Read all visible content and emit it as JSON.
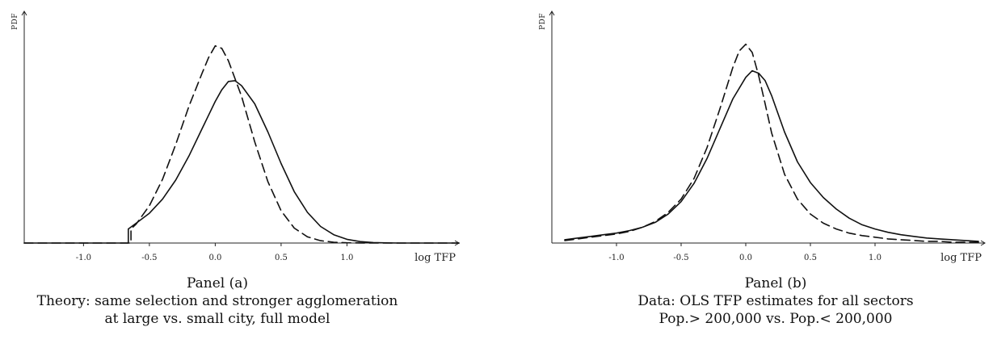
{
  "chart_data": [
    {
      "type": "line",
      "title": "Panel (a)",
      "subtitle": [
        "Theory: same selection and stronger agglomeration",
        "at large vs. small city, full model"
      ],
      "xlabel": "log TFP",
      "ylabel": "PDF",
      "xlim": [
        -1.45,
        1.85
      ],
      "xticks": [
        "-1.0",
        "-0.5",
        "0.0",
        "0.5",
        "1.0"
      ],
      "xtick_values": [
        -1.0,
        -0.5,
        0.0,
        0.5,
        1.0
      ],
      "ylim": [
        0,
        2.7
      ],
      "series": [
        {
          "style": "solid",
          "points": [
            [
              -1.45,
              0
            ],
            [
              -0.66,
              0
            ],
            [
              -0.66,
              0.17
            ],
            [
              -0.6,
              0.24
            ],
            [
              -0.5,
              0.36
            ],
            [
              -0.4,
              0.53
            ],
            [
              -0.3,
              0.76
            ],
            [
              -0.2,
              1.05
            ],
            [
              -0.1,
              1.38
            ],
            [
              0.0,
              1.71
            ],
            [
              0.05,
              1.85
            ],
            [
              0.1,
              1.95
            ],
            [
              0.15,
              1.96
            ],
            [
              0.2,
              1.9
            ],
            [
              0.3,
              1.68
            ],
            [
              0.4,
              1.34
            ],
            [
              0.5,
              0.96
            ],
            [
              0.6,
              0.62
            ],
            [
              0.7,
              0.37
            ],
            [
              0.8,
              0.2
            ],
            [
              0.9,
              0.1
            ],
            [
              1.0,
              0.045
            ],
            [
              1.1,
              0.018
            ],
            [
              1.2,
              0.006
            ],
            [
              1.3,
              0.002
            ],
            [
              1.4,
              0
            ],
            [
              1.85,
              0
            ]
          ]
        },
        {
          "style": "dashed",
          "points": [
            [
              -1.45,
              0
            ],
            [
              -0.64,
              0
            ],
            [
              -0.64,
              0.17
            ],
            [
              -0.6,
              0.23
            ],
            [
              -0.5,
              0.45
            ],
            [
              -0.4,
              0.77
            ],
            [
              -0.3,
              1.19
            ],
            [
              -0.2,
              1.65
            ],
            [
              -0.1,
              2.05
            ],
            [
              -0.05,
              2.24
            ],
            [
              0.0,
              2.38
            ],
            [
              0.05,
              2.35
            ],
            [
              0.1,
              2.2
            ],
            [
              0.2,
              1.77
            ],
            [
              0.3,
              1.22
            ],
            [
              0.4,
              0.74
            ],
            [
              0.5,
              0.39
            ],
            [
              0.6,
              0.18
            ],
            [
              0.7,
              0.075
            ],
            [
              0.8,
              0.028
            ],
            [
              0.9,
              0.01
            ],
            [
              1.0,
              0.003
            ],
            [
              1.1,
              0.001
            ],
            [
              1.2,
              0
            ],
            [
              1.85,
              0
            ]
          ]
        }
      ]
    },
    {
      "type": "line",
      "title": "Panel (b)",
      "subtitle": [
        "Data: OLS TFP estimates for all sectors",
        "Pop.> 200,000 vs. Pop.< 200,000"
      ],
      "xlabel": "log TFP",
      "ylabel": "PDF",
      "xlim": [
        -1.5,
        1.85
      ],
      "xticks": [
        "-1.0",
        "-0.5",
        "0.0",
        "0.5",
        "1.0"
      ],
      "xtick_values": [
        -1.0,
        -0.5,
        0.0,
        0.5,
        1.0
      ],
      "ylim": [
        0,
        2.7
      ],
      "series": [
        {
          "style": "solid",
          "points": [
            [
              -1.4,
              0.04
            ],
            [
              -1.3,
              0.06
            ],
            [
              -1.2,
              0.08
            ],
            [
              -1.1,
              0.1
            ],
            [
              -1.0,
              0.12
            ],
            [
              -0.9,
              0.15
            ],
            [
              -0.8,
              0.19
            ],
            [
              -0.7,
              0.25
            ],
            [
              -0.6,
              0.35
            ],
            [
              -0.5,
              0.5
            ],
            [
              -0.4,
              0.72
            ],
            [
              -0.3,
              1.02
            ],
            [
              -0.2,
              1.38
            ],
            [
              -0.1,
              1.74
            ],
            [
              0.0,
              2.0
            ],
            [
              0.05,
              2.08
            ],
            [
              0.1,
              2.05
            ],
            [
              0.15,
              1.96
            ],
            [
              0.2,
              1.78
            ],
            [
              0.3,
              1.34
            ],
            [
              0.4,
              0.98
            ],
            [
              0.5,
              0.73
            ],
            [
              0.6,
              0.55
            ],
            [
              0.7,
              0.41
            ],
            [
              0.8,
              0.3
            ],
            [
              0.9,
              0.22
            ],
            [
              1.0,
              0.17
            ],
            [
              1.1,
              0.13
            ],
            [
              1.2,
              0.1
            ],
            [
              1.3,
              0.08
            ],
            [
              1.4,
              0.06
            ],
            [
              1.5,
              0.05
            ],
            [
              1.6,
              0.04
            ],
            [
              1.7,
              0.03
            ],
            [
              1.8,
              0.02
            ]
          ]
        },
        {
          "style": "dashed",
          "points": [
            [
              -1.4,
              0.03
            ],
            [
              -1.3,
              0.05
            ],
            [
              -1.2,
              0.07
            ],
            [
              -1.1,
              0.09
            ],
            [
              -1.0,
              0.11
            ],
            [
              -0.9,
              0.14
            ],
            [
              -0.8,
              0.19
            ],
            [
              -0.7,
              0.26
            ],
            [
              -0.6,
              0.37
            ],
            [
              -0.5,
              0.53
            ],
            [
              -0.4,
              0.78
            ],
            [
              -0.3,
              1.15
            ],
            [
              -0.2,
              1.62
            ],
            [
              -0.1,
              2.12
            ],
            [
              -0.05,
              2.32
            ],
            [
              0.0,
              2.4
            ],
            [
              0.05,
              2.3
            ],
            [
              0.1,
              2.02
            ],
            [
              0.15,
              1.68
            ],
            [
              0.2,
              1.33
            ],
            [
              0.3,
              0.83
            ],
            [
              0.4,
              0.53
            ],
            [
              0.5,
              0.35
            ],
            [
              0.6,
              0.24
            ],
            [
              0.7,
              0.17
            ],
            [
              0.8,
              0.12
            ],
            [
              0.9,
              0.09
            ],
            [
              1.0,
              0.07
            ],
            [
              1.1,
              0.05
            ],
            [
              1.2,
              0.04
            ],
            [
              1.3,
              0.03
            ],
            [
              1.4,
              0.02
            ],
            [
              1.5,
              0.02
            ],
            [
              1.6,
              0.01
            ],
            [
              1.7,
              0.01
            ],
            [
              1.8,
              0.01
            ]
          ]
        }
      ]
    }
  ]
}
